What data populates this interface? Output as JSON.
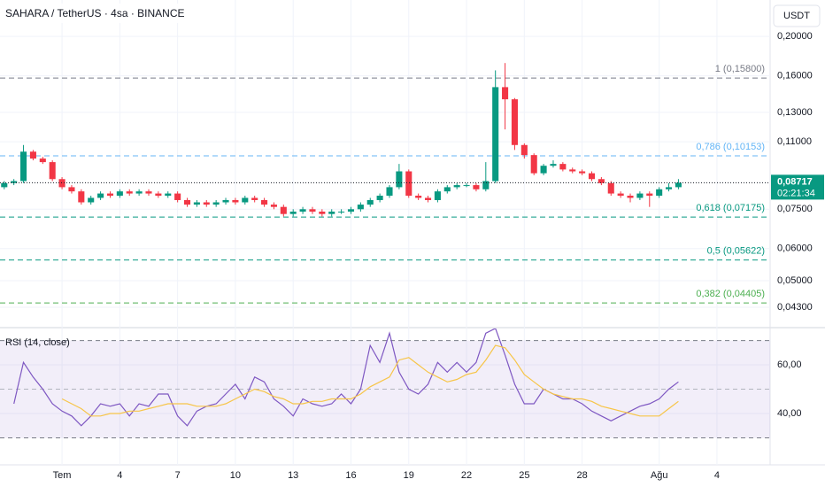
{
  "chart_data": {
    "type": "candlestick",
    "title": "SAHARA / TetherUS · 4sa · BINANCE",
    "currency": "USDT",
    "up_color": "#089981",
    "down_color": "#f23645",
    "log_scale": true,
    "grid": true,
    "x": [
      -3,
      -2.5,
      -2,
      -1.5,
      -1,
      -0.5,
      0,
      0.5,
      1,
      1.5,
      2,
      2.5,
      3,
      3.5,
      4,
      4.5,
      5,
      5.5,
      6,
      6.5,
      7,
      7.5,
      8,
      8.5,
      9,
      9.5,
      10,
      10.5,
      11,
      11.5,
      12,
      12.5,
      13,
      13.5,
      14,
      14.5,
      15,
      15.5,
      16,
      16.5,
      17,
      17.5,
      18,
      18.5,
      19,
      19.5,
      20,
      20.5,
      21,
      21.5,
      22,
      22.5,
      23,
      23.5,
      24,
      24.5,
      25,
      25.5,
      26,
      26.5,
      27,
      27.5,
      28,
      28.5,
      29,
      29.5,
      30,
      30.5,
      31,
      31.5,
      32
    ],
    "open": [
      0.085,
      0.087,
      0.088,
      0.104,
      0.1,
      0.098,
      0.089,
      0.085,
      0.083,
      0.078,
      0.08,
      0.082,
      0.081,
      0.083,
      0.082,
      0.083,
      0.082,
      0.081,
      0.082,
      0.079,
      0.077,
      0.078,
      0.077,
      0.078,
      0.079,
      0.078,
      0.08,
      0.079,
      0.077,
      0.076,
      0.073,
      0.074,
      0.075,
      0.074,
      0.073,
      0.074,
      0.074,
      0.075,
      0.077,
      0.079,
      0.081,
      0.085,
      0.093,
      0.081,
      0.08,
      0.079,
      0.083,
      0.085,
      0.086,
      0.086,
      0.084,
      0.088,
      0.15,
      0.14,
      0.108,
      0.102,
      0.092,
      0.096,
      0.097,
      0.094,
      0.093,
      0.092,
      0.089,
      0.087,
      0.082,
      0.081,
      0.08,
      0.082,
      0.081,
      0.084,
      0.085
    ],
    "high": [
      0.088,
      0.089,
      0.108,
      0.105,
      0.101,
      0.099,
      0.09,
      0.086,
      0.084,
      0.081,
      0.083,
      0.083,
      0.084,
      0.084,
      0.084,
      0.084,
      0.083,
      0.083,
      0.083,
      0.08,
      0.079,
      0.079,
      0.079,
      0.08,
      0.08,
      0.081,
      0.081,
      0.08,
      0.078,
      0.077,
      0.075,
      0.076,
      0.076,
      0.075,
      0.075,
      0.075,
      0.076,
      0.078,
      0.08,
      0.082,
      0.086,
      0.097,
      0.094,
      0.082,
      0.081,
      0.084,
      0.086,
      0.087,
      0.087,
      0.087,
      0.098,
      0.165,
      0.172,
      0.141,
      0.109,
      0.103,
      0.097,
      0.099,
      0.098,
      0.095,
      0.094,
      0.093,
      0.09,
      0.088,
      0.083,
      0.082,
      0.083,
      0.083,
      0.085,
      0.087,
      0.089
    ],
    "low": [
      0.084,
      0.086,
      0.087,
      0.099,
      0.097,
      0.088,
      0.084,
      0.082,
      0.077,
      0.077,
      0.079,
      0.08,
      0.08,
      0.081,
      0.081,
      0.081,
      0.08,
      0.08,
      0.078,
      0.076,
      0.076,
      0.076,
      0.076,
      0.077,
      0.077,
      0.077,
      0.078,
      0.076,
      0.075,
      0.072,
      0.072,
      0.073,
      0.073,
      0.072,
      0.072,
      0.073,
      0.073,
      0.074,
      0.076,
      0.078,
      0.08,
      0.084,
      0.08,
      0.079,
      0.078,
      0.078,
      0.082,
      0.084,
      0.085,
      0.083,
      0.083,
      0.087,
      0.118,
      0.105,
      0.1,
      0.091,
      0.091,
      0.095,
      0.093,
      0.092,
      0.091,
      0.088,
      0.086,
      0.081,
      0.08,
      0.078,
      0.079,
      0.076,
      0.08,
      0.083,
      0.084
    ],
    "close": [
      0.087,
      0.088,
      0.104,
      0.1,
      0.098,
      0.089,
      0.085,
      0.083,
      0.078,
      0.08,
      0.082,
      0.081,
      0.083,
      0.082,
      0.083,
      0.082,
      0.081,
      0.082,
      0.079,
      0.077,
      0.078,
      0.077,
      0.078,
      0.079,
      0.078,
      0.08,
      0.079,
      0.077,
      0.076,
      0.073,
      0.074,
      0.075,
      0.074,
      0.073,
      0.074,
      0.074,
      0.075,
      0.077,
      0.079,
      0.081,
      0.085,
      0.093,
      0.081,
      0.08,
      0.079,
      0.083,
      0.085,
      0.086,
      0.086,
      0.084,
      0.088,
      0.15,
      0.14,
      0.108,
      0.102,
      0.092,
      0.096,
      0.097,
      0.094,
      0.093,
      0.092,
      0.089,
      0.087,
      0.082,
      0.081,
      0.08,
      0.082,
      0.081,
      0.084,
      0.085,
      0.08717
    ],
    "xlim": [
      -3.22,
      36.76
    ],
    "xticks": [
      {
        "value": 0,
        "label": "Tem"
      },
      {
        "value": 3,
        "label": "4"
      },
      {
        "value": 6,
        "label": "7"
      },
      {
        "value": 9,
        "label": "10"
      },
      {
        "value": 12,
        "label": "13"
      },
      {
        "value": 15,
        "label": "16"
      },
      {
        "value": 18,
        "label": "19"
      },
      {
        "value": 21,
        "label": "22"
      },
      {
        "value": 24,
        "label": "25"
      },
      {
        "value": 27,
        "label": "28"
      },
      {
        "value": 31,
        "label": "Ağu"
      },
      {
        "value": 34,
        "label": "4"
      }
    ],
    "ylim": [
      0.0383,
      0.246
    ],
    "yticks": [
      {
        "value": 0.2,
        "label": "0,20000"
      },
      {
        "value": 0.16,
        "label": "0,16000"
      },
      {
        "value": 0.13,
        "label": "0,13000"
      },
      {
        "value": 0.11,
        "label": "0,11000"
      },
      {
        "value": 0.075,
        "label": "0,07500"
      },
      {
        "value": 0.06,
        "label": "0,06000"
      },
      {
        "value": 0.05,
        "label": "0,05000"
      },
      {
        "value": 0.043,
        "label": "0,04300"
      }
    ],
    "levels": [
      {
        "value": 0.158,
        "label": "1 (0,15800)",
        "color": "#787b86"
      },
      {
        "value": 0.10153,
        "label": "0,786 (0,10153)",
        "color": "#64b5f6"
      },
      {
        "value": 0.07175,
        "label": "0,618 (0,07175)",
        "color": "#089981"
      },
      {
        "value": 0.05622,
        "label": "0,5 (0,05622)",
        "color": "#089981"
      },
      {
        "value": 0.04405,
        "label": "0,382 (0,04405)",
        "color": "#4caf50"
      }
    ],
    "last_price": {
      "value": 0.08717,
      "label": "0,08717"
    },
    "countdown": "02:21:34",
    "indicator": {
      "type": "line",
      "title": "RSI (14, close)",
      "ylim": [
        18.9,
        75.3
      ],
      "yticks": [
        {
          "value": 60,
          "label": "60,00"
        },
        {
          "value": 40,
          "label": "40,00"
        }
      ],
      "band": [
        30,
        70
      ],
      "midline": 50,
      "band_color": "#7e57c2",
      "series": [
        {
          "color": "#7e57c2",
          "values": [
            null,
            44,
            61,
            55,
            50,
            44,
            41,
            39,
            35,
            39,
            44,
            43,
            44,
            39,
            44,
            43,
            48,
            48,
            39,
            35,
            41,
            43,
            44,
            48,
            52,
            46,
            55,
            53,
            46,
            43,
            39,
            46,
            44,
            43,
            44,
            48,
            44,
            50,
            68,
            61,
            73,
            57,
            50,
            48,
            52,
            61,
            57,
            61,
            57,
            61,
            73,
            75,
            64,
            52,
            44,
            44,
            50,
            48,
            46,
            46,
            44,
            41,
            39,
            37,
            39,
            41,
            43,
            44,
            46,
            50,
            53
          ]
        },
        {
          "color": "#f7c548",
          "values": [
            null,
            null,
            null,
            null,
            null,
            null,
            46,
            44,
            42,
            39,
            39,
            40,
            40,
            41,
            41,
            42,
            43,
            44,
            44,
            44,
            43,
            43,
            43,
            44,
            46,
            48,
            50,
            49,
            47,
            46,
            44,
            44,
            45,
            45,
            46,
            46,
            46,
            48,
            51,
            53,
            55,
            62,
            63,
            60,
            57,
            55,
            53,
            54,
            56,
            57,
            62,
            68,
            67,
            62,
            56,
            53,
            50,
            48,
            47,
            46,
            46,
            45,
            43,
            42,
            41,
            40,
            39,
            39,
            39,
            42,
            45
          ]
        }
      ]
    }
  }
}
